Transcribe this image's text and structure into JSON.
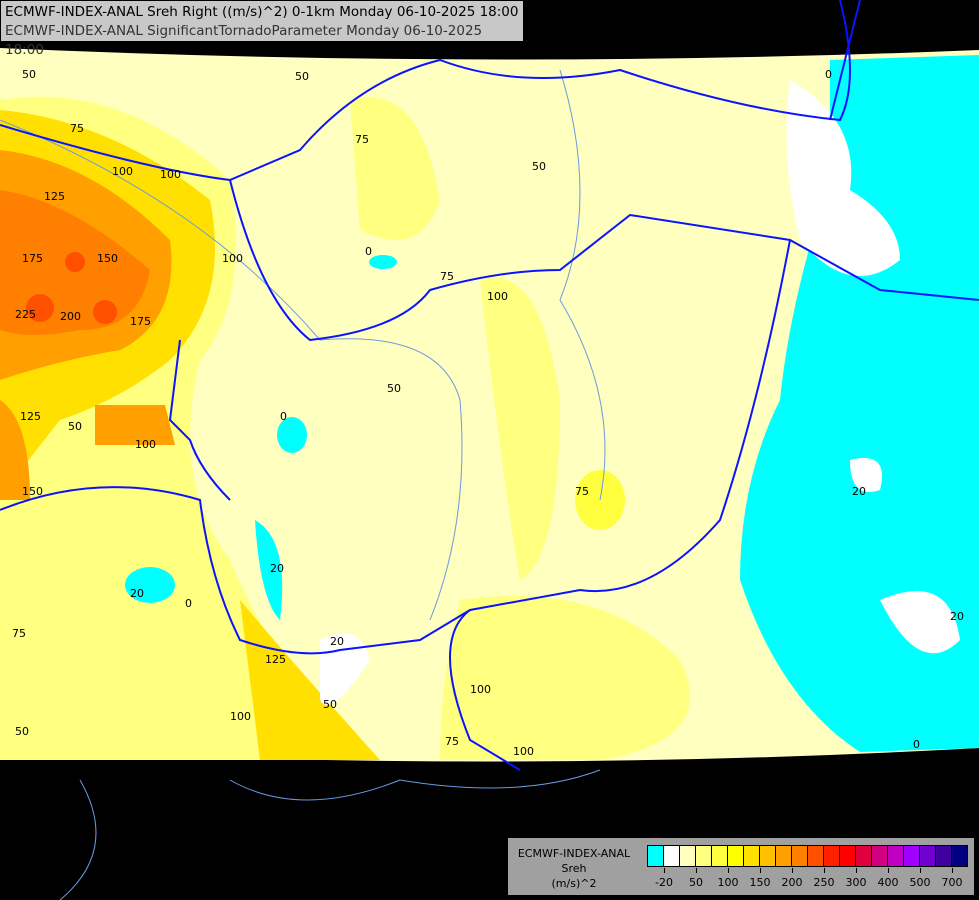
{
  "title": {
    "line1": "ECMWF-INDEX-ANAL Sreh Right ((m/s)^2) 0-1km Monday 06-10-2025 18:00",
    "line2": "ECMWF-INDEX-ANAL SignificantTornadoParameter Monday 06-10-2025 18:00"
  },
  "legend": {
    "model": "ECMWF-INDEX-ANAL",
    "variable": "Sreh",
    "unit": "(m/s)^2",
    "colors": [
      "#00ffff",
      "#ffffff",
      "#ffffc0",
      "#ffff80",
      "#ffff40",
      "#ffff00",
      "#ffe000",
      "#ffc000",
      "#ffa000",
      "#ff8000",
      "#ff5000",
      "#ff2000",
      "#ff0000",
      "#e00040",
      "#d00080",
      "#c000c0",
      "#a000ff",
      "#7000d0",
      "#4000a0",
      "#000080"
    ],
    "ticks": [
      "-20",
      "50",
      "100",
      "150",
      "200",
      "250",
      "300",
      "400",
      "500",
      "700"
    ]
  },
  "contour_labels": [
    "50",
    "50",
    "75",
    "100",
    "125",
    "175",
    "150",
    "200",
    "225",
    "175",
    "100",
    "125",
    "100",
    "150",
    "0",
    "20",
    "20",
    "0",
    "75",
    "50",
    "50",
    "0",
    "75",
    "100",
    "50",
    "0",
    "20",
    "20",
    "20",
    "0",
    "75",
    "100",
    "125",
    "100",
    "50",
    "75",
    "100",
    "100",
    "50",
    "75"
  ]
}
